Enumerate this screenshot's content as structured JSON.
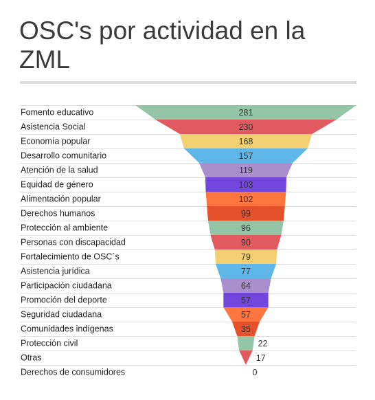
{
  "header": {
    "title": "OSC's por actividad en la ZML"
  },
  "chart_data": {
    "type": "funnel",
    "title": "OSC's por actividad en la ZML",
    "categories": [
      "Fomento educativo",
      "Asistencia Social",
      "Economía popular",
      "Desarrollo comunitario",
      "Atención de la salud",
      "Equidad de género",
      "Alimentación popular",
      "Derechos humanos",
      "Protección al ambiente",
      "Personas con discapacidad",
      "Fortalecimiento de OSC´s",
      "Asistencia jurídica",
      "Participación ciudadana",
      "Promoción del deporte",
      "Seguridad ciudadana",
      "Comunidades indígenas",
      "Protección civil",
      "Otras",
      "Derechos de consumidores"
    ],
    "values": [
      281,
      230,
      168,
      157,
      119,
      103,
      102,
      99,
      96,
      90,
      79,
      77,
      64,
      57,
      57,
      35,
      22,
      17,
      0
    ],
    "colors": [
      "#93c5a6",
      "#e05a5f",
      "#f2d071",
      "#5fb6e8",
      "#a98fcc",
      "#7347dd",
      "#ff7540",
      "#e4512a",
      "#93c5a6",
      "#e05a5f",
      "#f2d071",
      "#5fb6e8",
      "#a98fcc",
      "#7347dd",
      "#ff7540",
      "#e4512a",
      "#93c5a6",
      "#e05a5f",
      "#f2d071"
    ],
    "legend": "none",
    "grid": false
  }
}
